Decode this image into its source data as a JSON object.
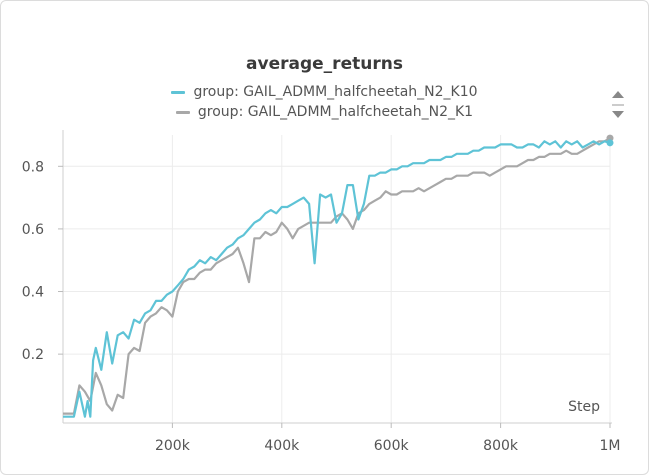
{
  "chart_data": {
    "type": "line",
    "title": "average_returns",
    "xlabel": "Step",
    "ylabel": "",
    "xlim": [
      0,
      1000000
    ],
    "ylim": [
      -0.02,
      0.9
    ],
    "xticks": [
      200000,
      400000,
      600000,
      800000,
      1000000
    ],
    "xtick_labels": [
      "200k",
      "400k",
      "600k",
      "800k",
      "1M"
    ],
    "yticks": [
      0.2,
      0.4,
      0.6,
      0.8
    ],
    "ytick_labels": [
      "0.2",
      "0.4",
      "0.6",
      "0.8"
    ],
    "grid": true,
    "legend_position": "top-center",
    "series": [
      {
        "name": "group: GAIL_ADMM_halfcheetah_N2_K10",
        "color": "#5ec3d6",
        "x": [
          0,
          20000,
          30000,
          40000,
          45000,
          50000,
          55000,
          60000,
          70000,
          80000,
          90000,
          100000,
          110000,
          120000,
          130000,
          140000,
          150000,
          160000,
          170000,
          180000,
          190000,
          200000,
          210000,
          220000,
          230000,
          240000,
          250000,
          260000,
          270000,
          280000,
          290000,
          300000,
          310000,
          320000,
          330000,
          340000,
          350000,
          360000,
          370000,
          380000,
          390000,
          400000,
          410000,
          420000,
          430000,
          440000,
          450000,
          460000,
          470000,
          480000,
          490000,
          500000,
          510000,
          520000,
          530000,
          540000,
          550000,
          560000,
          570000,
          580000,
          590000,
          600000,
          610000,
          620000,
          630000,
          640000,
          650000,
          660000,
          670000,
          680000,
          690000,
          700000,
          710000,
          720000,
          730000,
          740000,
          750000,
          760000,
          770000,
          780000,
          790000,
          800000,
          810000,
          820000,
          830000,
          840000,
          850000,
          860000,
          870000,
          880000,
          890000,
          900000,
          910000,
          920000,
          930000,
          940000,
          950000,
          960000,
          970000,
          980000,
          990000,
          1000000
        ],
        "y": [
          0.0,
          0.0,
          0.08,
          0.0,
          0.05,
          0.0,
          0.18,
          0.22,
          0.15,
          0.27,
          0.17,
          0.26,
          0.27,
          0.25,
          0.31,
          0.3,
          0.33,
          0.34,
          0.37,
          0.37,
          0.39,
          0.4,
          0.42,
          0.44,
          0.47,
          0.48,
          0.5,
          0.49,
          0.51,
          0.5,
          0.52,
          0.54,
          0.55,
          0.57,
          0.58,
          0.6,
          0.62,
          0.63,
          0.65,
          0.66,
          0.65,
          0.67,
          0.67,
          0.68,
          0.69,
          0.7,
          0.68,
          0.49,
          0.71,
          0.7,
          0.71,
          0.62,
          0.65,
          0.74,
          0.74,
          0.63,
          0.68,
          0.77,
          0.77,
          0.78,
          0.78,
          0.79,
          0.79,
          0.8,
          0.8,
          0.81,
          0.81,
          0.81,
          0.82,
          0.82,
          0.82,
          0.83,
          0.83,
          0.84,
          0.84,
          0.84,
          0.85,
          0.85,
          0.86,
          0.86,
          0.86,
          0.87,
          0.87,
          0.87,
          0.86,
          0.86,
          0.87,
          0.87,
          0.86,
          0.88,
          0.87,
          0.88,
          0.86,
          0.88,
          0.87,
          0.88,
          0.86,
          0.87,
          0.88,
          0.87,
          0.88,
          0.875
        ]
      },
      {
        "name": "group: GAIL_ADMM_halfcheetah_N2_K1",
        "color": "#a8a8a8",
        "x": [
          0,
          20000,
          30000,
          40000,
          50000,
          60000,
          70000,
          80000,
          90000,
          100000,
          110000,
          120000,
          130000,
          140000,
          150000,
          160000,
          170000,
          180000,
          190000,
          200000,
          210000,
          220000,
          230000,
          240000,
          250000,
          260000,
          270000,
          280000,
          290000,
          300000,
          310000,
          320000,
          330000,
          340000,
          350000,
          360000,
          370000,
          380000,
          390000,
          400000,
          410000,
          420000,
          430000,
          440000,
          450000,
          460000,
          470000,
          480000,
          490000,
          500000,
          510000,
          520000,
          530000,
          540000,
          550000,
          560000,
          570000,
          580000,
          590000,
          600000,
          610000,
          620000,
          630000,
          640000,
          650000,
          660000,
          670000,
          680000,
          690000,
          700000,
          710000,
          720000,
          730000,
          740000,
          750000,
          760000,
          770000,
          780000,
          790000,
          800000,
          810000,
          820000,
          830000,
          840000,
          850000,
          860000,
          870000,
          880000,
          890000,
          900000,
          910000,
          920000,
          930000,
          940000,
          950000,
          960000,
          970000,
          980000,
          990000,
          1000000
        ],
        "y": [
          0.01,
          0.01,
          0.1,
          0.08,
          0.05,
          0.14,
          0.1,
          0.04,
          0.02,
          0.07,
          0.06,
          0.2,
          0.22,
          0.21,
          0.3,
          0.32,
          0.33,
          0.35,
          0.34,
          0.32,
          0.4,
          0.43,
          0.44,
          0.44,
          0.46,
          0.47,
          0.47,
          0.49,
          0.5,
          0.51,
          0.52,
          0.54,
          0.49,
          0.43,
          0.57,
          0.57,
          0.59,
          0.58,
          0.59,
          0.62,
          0.6,
          0.57,
          0.6,
          0.61,
          0.62,
          0.62,
          0.62,
          0.62,
          0.62,
          0.64,
          0.65,
          0.63,
          0.6,
          0.65,
          0.66,
          0.68,
          0.69,
          0.7,
          0.72,
          0.71,
          0.71,
          0.72,
          0.72,
          0.72,
          0.73,
          0.72,
          0.73,
          0.74,
          0.75,
          0.76,
          0.76,
          0.77,
          0.77,
          0.77,
          0.78,
          0.78,
          0.78,
          0.77,
          0.78,
          0.79,
          0.8,
          0.8,
          0.8,
          0.81,
          0.82,
          0.82,
          0.83,
          0.83,
          0.84,
          0.84,
          0.84,
          0.85,
          0.84,
          0.84,
          0.85,
          0.86,
          0.87,
          0.88,
          0.88,
          0.89
        ]
      }
    ]
  },
  "legend_controls": {
    "up_icon": "triangle-up-icon",
    "down_icon": "triangle-down-icon"
  }
}
